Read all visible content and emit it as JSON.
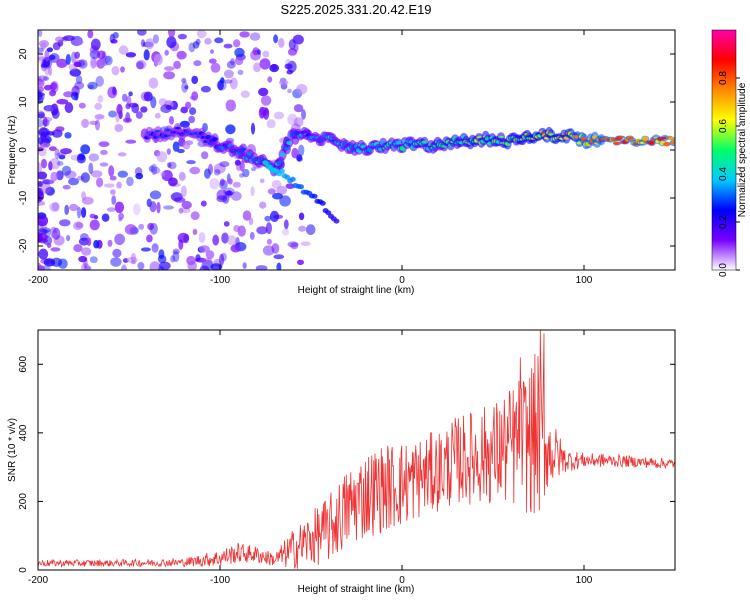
{
  "title": "S225.2025.331.20.42.E19",
  "colors": {
    "snr_line": "#ee3333",
    "background": "#ffffff",
    "axis": "#000000"
  },
  "chart_data": [
    {
      "type": "heatmap",
      "title": "S225.2025.331.20.42.E19",
      "xlabel": "Height of straight line (km)",
      "ylabel": "Frequency (Hz)",
      "xlim": [
        -200,
        150
      ],
      "ylim": [
        -25,
        25
      ],
      "xticks": [
        -200,
        -100,
        0,
        100
      ],
      "yticks": [
        -20,
        -10,
        0,
        10,
        20
      ],
      "x_tick_labels": [
        "-200",
        "-100",
        "0",
        "100"
      ],
      "y_tick_labels": [
        "-20",
        "-10",
        "0",
        "10",
        "20"
      ],
      "colorbar": {
        "label": "Normalized spectral amplitude",
        "range": [
          0,
          1
        ],
        "ticks": [
          0.0,
          0.2,
          0.4,
          0.6,
          0.8
        ],
        "tick_labels": [
          "0.0",
          "0.2",
          "0.4",
          "0.6",
          "0.8"
        ],
        "stops": [
          "#ffffff",
          "#7700ff",
          "#0000ff",
          "#00ccff",
          "#00ff66",
          "#ffff00",
          "#ff8800",
          "#ff0000",
          "#ff00aa"
        ]
      },
      "ridge": {
        "x": [
          -140,
          -120,
          -110,
          -100,
          -90,
          -80,
          -70,
          -60,
          -50,
          -40,
          -30,
          -20,
          -10,
          0,
          10,
          20,
          30,
          40,
          50,
          60,
          70,
          80,
          90,
          100,
          110,
          120,
          130,
          140,
          150
        ],
        "frequency": [
          3,
          4,
          3,
          1,
          0,
          -2,
          -4,
          3,
          3,
          2,
          1,
          0,
          1,
          1,
          1,
          1,
          2,
          2,
          2,
          2,
          3,
          3,
          3,
          2,
          2,
          2,
          2,
          2,
          2
        ],
        "amplitude": [
          0.3,
          0.3,
          0.3,
          0.35,
          0.35,
          0.4,
          0.45,
          0.4,
          0.35,
          0.4,
          0.4,
          0.45,
          0.45,
          0.5,
          0.5,
          0.5,
          0.55,
          0.6,
          0.6,
          0.6,
          0.7,
          0.75,
          0.75,
          0.85,
          0.9,
          0.9,
          0.9,
          0.9,
          0.9
        ]
      },
      "descending_branch": {
        "x": [
          -75,
          -65,
          -55,
          -45,
          -35
        ],
        "frequency": [
          -3,
          -5,
          -8,
          -11,
          -15
        ],
        "amplitude": [
          0.4,
          0.35,
          0.3,
          0.25,
          0.2
        ]
      }
    },
    {
      "type": "line",
      "xlabel": "Height of straight line (km)",
      "ylabel": "SNR (10 * v/v)",
      "xlim": [
        -200,
        150
      ],
      "ylim": [
        0,
        700
      ],
      "xticks": [
        -200,
        -100,
        0,
        100
      ],
      "yticks": [
        0,
        200,
        400,
        600
      ],
      "x_tick_labels": [
        "-200",
        "-100",
        "0",
        "100"
      ],
      "y_tick_labels": [
        "0",
        "200",
        "400",
        "600"
      ],
      "series": [
        {
          "name": "SNR",
          "color": "#ee3333",
          "envelope": {
            "x": [
              -200,
              -160,
              -120,
              -100,
              -90,
              -80,
              -70,
              -60,
              -50,
              -40,
              -30,
              -20,
              -10,
              0,
              10,
              20,
              30,
              40,
              50,
              60,
              70,
              75,
              80,
              90,
              100,
              110,
              120,
              130,
              140,
              150
            ],
            "mean": [
              20,
              20,
              22,
              35,
              50,
              45,
              30,
              60,
              90,
              120,
              180,
              220,
              240,
              250,
              270,
              290,
              320,
              330,
              340,
              360,
              380,
              400,
              350,
              320,
              320,
              320,
              318,
              315,
              312,
              310
            ],
            "spread": [
              10,
              10,
              12,
              25,
              30,
              25,
              20,
              60,
              80,
              100,
              120,
              130,
              130,
              130,
              120,
              120,
              130,
              140,
              150,
              180,
              220,
              260,
              120,
              35,
              22,
              20,
              18,
              16,
              16,
              15
            ]
          },
          "peaks": {
            "x": [
              76,
              78,
              73,
              65
            ],
            "y": [
              705,
              690,
              630,
              620
            ]
          }
        }
      ]
    }
  ]
}
